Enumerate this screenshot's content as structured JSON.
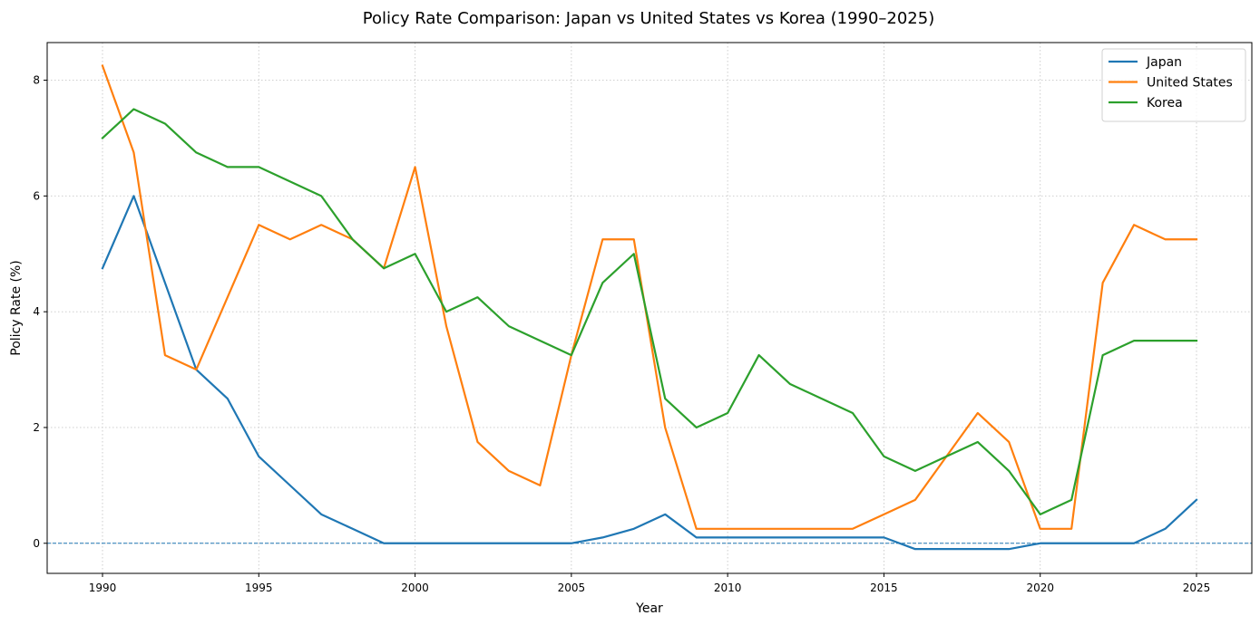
{
  "chart_data": {
    "type": "line",
    "title": "Policy Rate Comparison: Japan vs United States vs Korea (1990–2025)",
    "xlabel": "Year",
    "ylabel": "Policy Rate (%)",
    "xlim": [
      1988.23,
      2026.77
    ],
    "ylim": [
      -0.52,
      8.65
    ],
    "xticks": [
      1990,
      1995,
      2000,
      2005,
      2010,
      2015,
      2020,
      2025
    ],
    "yticks": [
      0,
      2,
      4,
      6,
      8
    ],
    "grid": true,
    "legend_position": "top-right",
    "reference_line": {
      "y": 0,
      "style": "dashed",
      "color": "#1f77b4"
    },
    "x": [
      1990,
      1991,
      1992,
      1993,
      1994,
      1995,
      1996,
      1997,
      1998,
      1999,
      2000,
      2001,
      2002,
      2003,
      2004,
      2005,
      2006,
      2007,
      2008,
      2009,
      2010,
      2011,
      2012,
      2013,
      2014,
      2015,
      2016,
      2017,
      2018,
      2019,
      2020,
      2021,
      2022,
      2023,
      2024,
      2025
    ],
    "series": [
      {
        "name": "Japan",
        "color": "#1f77b4",
        "values": [
          4.75,
          6.0,
          4.5,
          3.0,
          2.5,
          1.5,
          1.0,
          0.5,
          0.25,
          0.0,
          0.0,
          0.0,
          0.0,
          0.0,
          0.0,
          0.0,
          0.1,
          0.25,
          0.5,
          0.1,
          0.1,
          0.1,
          0.1,
          0.1,
          0.1,
          0.1,
          -0.1,
          -0.1,
          -0.1,
          -0.1,
          0.0,
          0.0,
          0.0,
          0.0,
          0.25,
          0.75
        ]
      },
      {
        "name": "United States",
        "color": "#ff7f0e",
        "values": [
          8.25,
          6.75,
          3.25,
          3.0,
          4.25,
          5.5,
          5.25,
          5.5,
          5.25,
          4.75,
          6.5,
          3.75,
          1.75,
          1.25,
          1.0,
          3.25,
          5.25,
          5.25,
          2.0,
          0.25,
          0.25,
          0.25,
          0.25,
          0.25,
          0.25,
          0.5,
          0.75,
          1.5,
          2.25,
          1.75,
          0.25,
          0.25,
          4.5,
          5.5,
          5.25,
          5.25
        ]
      },
      {
        "name": "Korea",
        "color": "#2ca02c",
        "values": [
          7.0,
          7.5,
          7.25,
          6.75,
          6.5,
          6.5,
          6.25,
          6.0,
          5.25,
          4.75,
          5.0,
          4.0,
          4.25,
          3.75,
          3.5,
          3.25,
          4.5,
          5.0,
          2.5,
          2.0,
          2.25,
          3.25,
          2.75,
          2.5,
          2.25,
          1.5,
          1.25,
          1.5,
          1.75,
          1.25,
          0.5,
          0.75,
          3.25,
          3.5,
          3.5,
          3.5
        ]
      }
    ]
  }
}
